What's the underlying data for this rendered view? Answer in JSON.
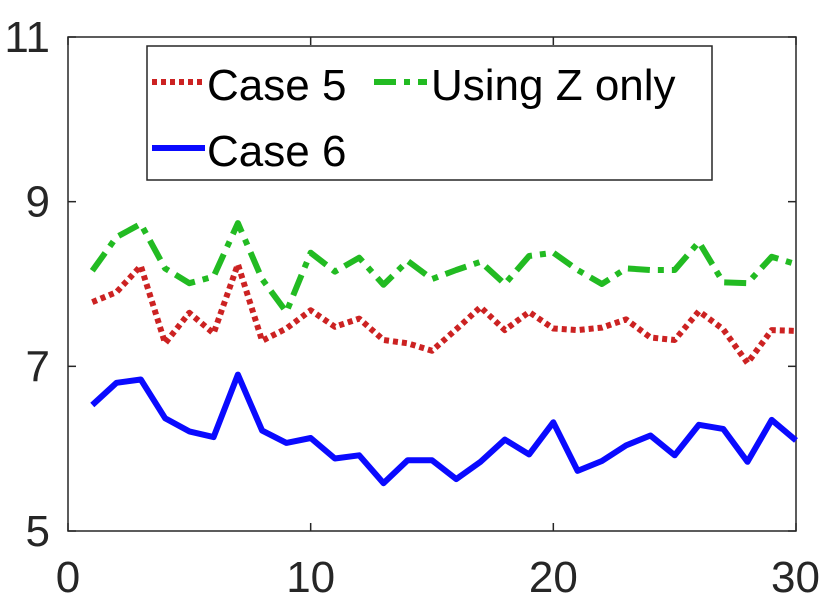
{
  "chart_data": {
    "type": "line",
    "title": "",
    "xlabel": "",
    "ylabel": "",
    "xlim": [
      0,
      30
    ],
    "ylim": [
      5,
      11
    ],
    "xticks": [
      0,
      10,
      20,
      30
    ],
    "yticks": [
      5,
      7,
      9,
      11
    ],
    "x": [
      1,
      2,
      3,
      4,
      5,
      6,
      7,
      8,
      9,
      10,
      11,
      12,
      13,
      14,
      15,
      16,
      17,
      18,
      19,
      20,
      21,
      22,
      23,
      24,
      25,
      26,
      27,
      28,
      29,
      30
    ],
    "legend_position": "top-left",
    "grid": false,
    "series": [
      {
        "name": "Case 5",
        "color": "#cc2222",
        "style": "dotted",
        "values": [
          7.78,
          7.9,
          8.22,
          7.28,
          7.65,
          7.4,
          8.24,
          7.31,
          7.46,
          7.68,
          7.48,
          7.58,
          7.32,
          7.28,
          7.19,
          7.45,
          7.72,
          7.44,
          7.66,
          7.46,
          7.44,
          7.47,
          7.57,
          7.35,
          7.32,
          7.67,
          7.45,
          7.04,
          7.44,
          7.43
        ]
      },
      {
        "name": "Using Z only",
        "color": "#22bb22",
        "style": "dashdot",
        "values": [
          8.16,
          8.57,
          8.73,
          8.19,
          8.01,
          8.09,
          8.74,
          8.06,
          7.66,
          8.38,
          8.15,
          8.32,
          7.99,
          8.28,
          8.06,
          8.17,
          8.27,
          8.0,
          8.34,
          8.38,
          8.17,
          8.0,
          8.19,
          8.17,
          8.17,
          8.51,
          8.02,
          8.01,
          8.33,
          8.24
        ]
      },
      {
        "name": "Case 6",
        "color": "#0a0aff",
        "style": "solid",
        "values": [
          6.53,
          6.8,
          6.84,
          6.37,
          6.21,
          6.14,
          6.9,
          6.22,
          6.07,
          6.13,
          5.88,
          5.92,
          5.58,
          5.86,
          5.86,
          5.63,
          5.84,
          6.11,
          5.93,
          6.32,
          5.73,
          5.85,
          6.04,
          6.16,
          5.92,
          6.29,
          6.24,
          5.84,
          6.35,
          6.1
        ]
      }
    ]
  }
}
